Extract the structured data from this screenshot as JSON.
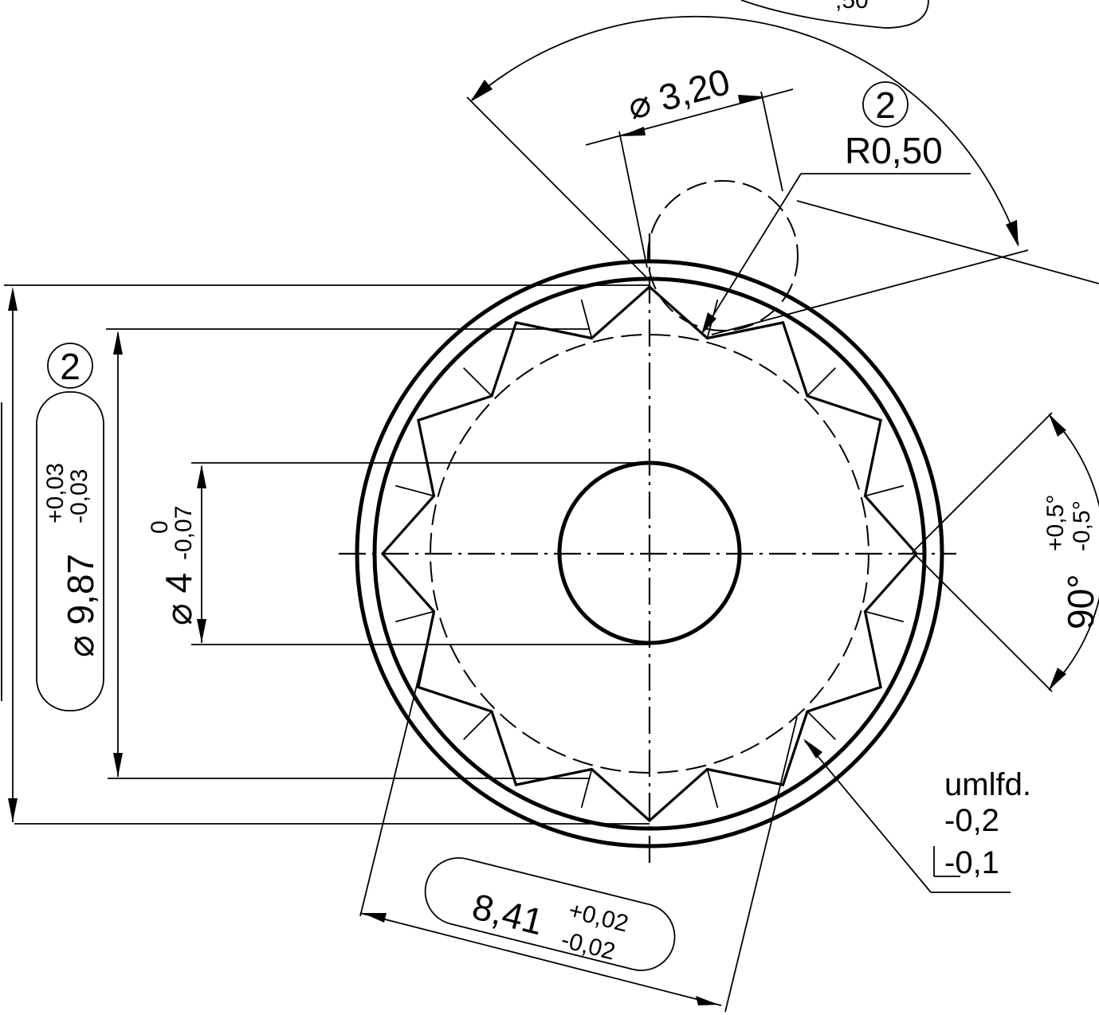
{
  "drawing": {
    "top_partial_label": ",50",
    "dim_diameter_3_20": "⌀ 3,20",
    "callout_number": "2",
    "radius_label": "R0,50",
    "dim_outer": {
      "callout_number": "2",
      "value": "⌀ 9,87",
      "tol_upper": "+0,03",
      "tol_lower": "-0,03"
    },
    "dim_bore": {
      "value": "⌀ 4",
      "tol_upper": "0",
      "tol_lower": "-0,07"
    },
    "dim_angle": {
      "value": "90°",
      "tol_upper": "+0,5°",
      "tol_lower": "-0,5°"
    },
    "dim_across_flats": {
      "value": "8,41",
      "tol_upper": "+0,02",
      "tol_lower": "-0,02"
    },
    "surface_note": {
      "line1": "umlfd.",
      "line2": "-0,2",
      "line3": "-0,1"
    },
    "colors": {
      "line": "#000000",
      "background": "#ffffff"
    }
  }
}
